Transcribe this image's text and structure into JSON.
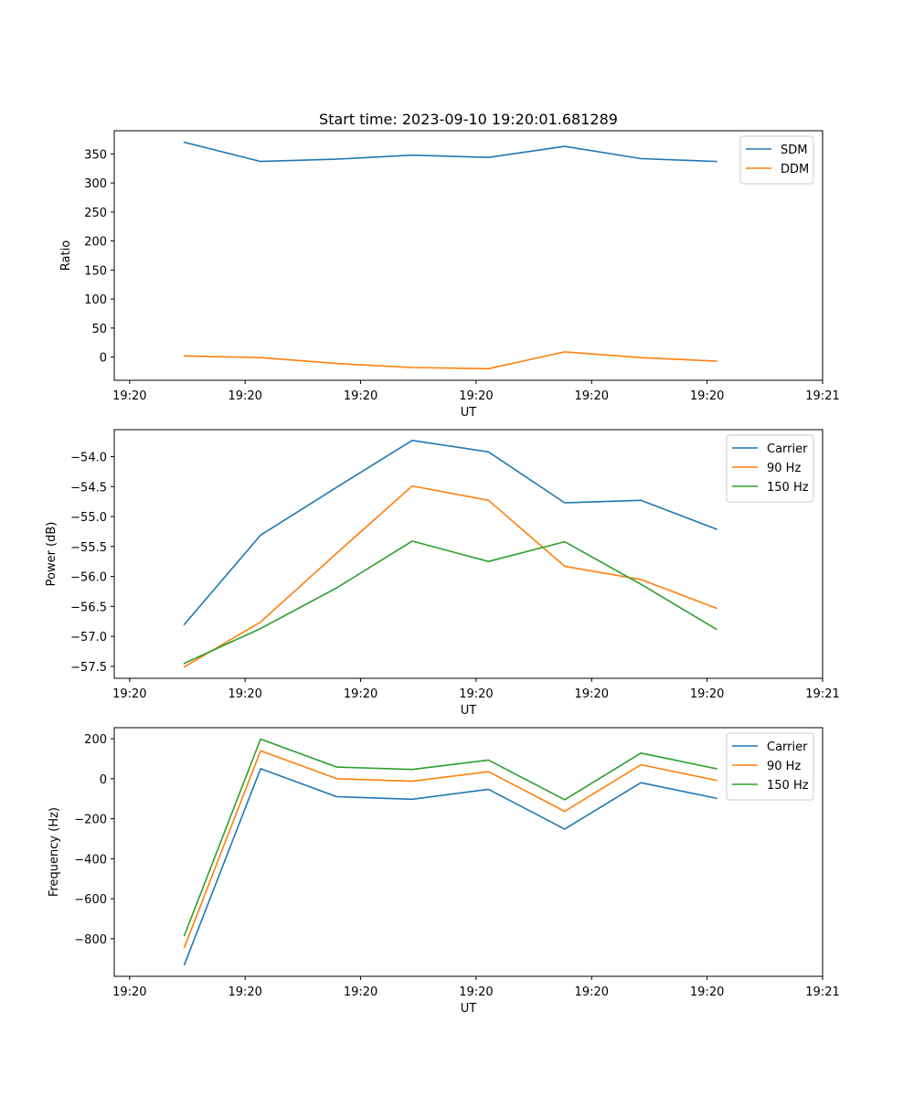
{
  "chart_data": [
    {
      "type": "line",
      "id": "ratio",
      "title": "Start time: 2023-09-10 19:20:01.681289",
      "xlabel": "UT",
      "ylabel": "Ratio",
      "ylim": [
        -40,
        390
      ],
      "yticks": [
        0,
        50,
        100,
        150,
        200,
        250,
        300,
        350
      ],
      "ytick_labels": [
        "0",
        "50",
        "100",
        "150",
        "200",
        "250",
        "300",
        "350"
      ],
      "xlim": [
        0,
        9.2
      ],
      "xticks": [
        0.2,
        1.7,
        3.2,
        4.7,
        6.2,
        7.7,
        9.2
      ],
      "xtick_labels": [
        "19:20",
        "19:20",
        "19:20",
        "19:20",
        "19:20",
        "19:20",
        "19:21"
      ],
      "x": [
        0.91,
        1.9,
        2.89,
        3.87,
        4.86,
        5.85,
        6.84,
        7.82
      ],
      "legend": "top-right",
      "series": [
        {
          "name": "SDM",
          "color": "#1f77b4",
          "values": [
            370,
            337,
            341,
            348,
            344,
            363,
            342,
            337
          ]
        },
        {
          "name": "DDM",
          "color": "#ff7f0e",
          "values": [
            2,
            -1,
            -11,
            -18,
            -20,
            9,
            -1,
            -7
          ]
        }
      ]
    },
    {
      "type": "line",
      "id": "power",
      "title": "",
      "xlabel": "UT",
      "ylabel": "Power (dB)",
      "ylim": [
        -57.7,
        -53.55
      ],
      "yticks": [
        -57.5,
        -57.0,
        -56.5,
        -56.0,
        -55.5,
        -55.0,
        -54.5,
        -54.0
      ],
      "ytick_labels": [
        "−57.5",
        "−57.0",
        "−56.5",
        "−56.0",
        "−55.5",
        "−55.0",
        "−54.5",
        "−54.0"
      ],
      "xlim": [
        0,
        9.2
      ],
      "xticks": [
        0.2,
        1.7,
        3.2,
        4.7,
        6.2,
        7.7,
        9.2
      ],
      "xtick_labels": [
        "19:20",
        "19:20",
        "19:20",
        "19:20",
        "19:20",
        "19:20",
        "19:21"
      ],
      "x": [
        0.91,
        1.9,
        2.89,
        3.87,
        4.86,
        5.85,
        6.84,
        7.82
      ],
      "legend": "top-right",
      "series": [
        {
          "name": "Carrier",
          "color": "#1f77b4",
          "values": [
            -56.8,
            -55.31,
            -54.51,
            -53.73,
            -53.92,
            -54.77,
            -54.73,
            -55.21
          ]
        },
        {
          "name": "90 Hz",
          "color": "#ff7f0e",
          "values": [
            -57.51,
            -56.76,
            -55.61,
            -54.49,
            -54.73,
            -55.83,
            -56.05,
            -56.53
          ]
        },
        {
          "name": "150 Hz",
          "color": "#2ca02c",
          "values": [
            -57.45,
            -56.87,
            -56.19,
            -55.41,
            -55.75,
            -55.42,
            -56.13,
            -56.88
          ]
        }
      ]
    },
    {
      "type": "line",
      "id": "frequency",
      "title": "",
      "xlabel": "UT",
      "ylabel": "Frequency (Hz)",
      "ylim": [
        -988,
        255
      ],
      "yticks": [
        -800,
        -600,
        -400,
        -200,
        0,
        200
      ],
      "ytick_labels": [
        "−800",
        "−600",
        "−400",
        "−200",
        "0",
        "200"
      ],
      "xlim": [
        0,
        9.2
      ],
      "xticks": [
        0.2,
        1.7,
        3.2,
        4.7,
        6.2,
        7.7,
        9.2
      ],
      "xtick_labels": [
        "19:20",
        "19:20",
        "19:20",
        "19:20",
        "19:20",
        "19:20",
        "19:21"
      ],
      "x": [
        0.91,
        1.9,
        2.89,
        3.87,
        4.86,
        5.85,
        6.84,
        7.82
      ],
      "legend": "top-right",
      "series": [
        {
          "name": "Carrier",
          "color": "#1f77b4",
          "values": [
            -930,
            50,
            -90,
            -103,
            -53,
            -252,
            -20,
            -98
          ]
        },
        {
          "name": "90 Hz",
          "color": "#ff7f0e",
          "values": [
            -843,
            140,
            0,
            -13,
            35,
            -163,
            70,
            -8
          ]
        },
        {
          "name": "150 Hz",
          "color": "#2ca02c",
          "values": [
            -784,
            198,
            58,
            46,
            93,
            -105,
            128,
            50
          ]
        }
      ]
    }
  ]
}
